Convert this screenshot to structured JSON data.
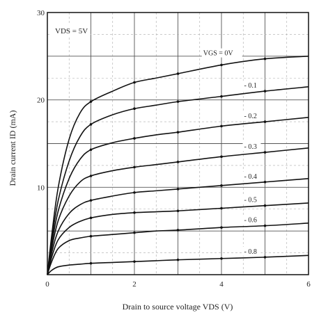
{
  "chart_data": {
    "type": "line",
    "title": "",
    "xlabel": "Drain to source voltage  VDS (V)",
    "ylabel": "Drain current  ID (mA)",
    "xlim": [
      0,
      6
    ],
    "ylim": [
      0,
      30
    ],
    "x_ticks": [
      "0",
      "2",
      "4",
      "6"
    ],
    "y_ticks": [
      "10",
      "20",
      "30"
    ],
    "grid": true,
    "annotation": "VDS = 5V",
    "series_label_prefix": "VGS = ",
    "x": [
      0,
      0.1,
      0.25,
      0.5,
      0.75,
      1,
      1.5,
      2,
      2.5,
      3,
      4,
      5,
      6
    ],
    "series": [
      {
        "name": "0V",
        "label": "VGS = 0V",
        "values": [
          0,
          4.5,
          10,
          15.5,
          18.5,
          19.8,
          21,
          22,
          22.5,
          23,
          24,
          24.7,
          25
        ]
      },
      {
        "name": "-0.1",
        "label": "- 0.1",
        "values": [
          0,
          4,
          8.5,
          13,
          15.8,
          17.2,
          18.3,
          19,
          19.4,
          19.8,
          20.4,
          21,
          21.5
        ]
      },
      {
        "name": "-0.2",
        "label": "- 0.2",
        "values": [
          0,
          3.5,
          7.3,
          11,
          13.2,
          14.3,
          15.1,
          15.6,
          16,
          16.3,
          17,
          17.5,
          18
        ]
      },
      {
        "name": "-0.3",
        "label": "- 0.3",
        "values": [
          0,
          3,
          6.2,
          9,
          10.6,
          11.3,
          11.9,
          12.3,
          12.6,
          12.9,
          13.5,
          14,
          14.5
        ]
      },
      {
        "name": "-0.4",
        "label": "- 0.4",
        "values": [
          0,
          2.5,
          5,
          7,
          8,
          8.5,
          9,
          9.4,
          9.6,
          9.8,
          10.2,
          10.6,
          11
        ]
      },
      {
        "name": "-0.5",
        "label": "- 0.5",
        "values": [
          0,
          2,
          4,
          5.4,
          6.1,
          6.5,
          6.9,
          7.1,
          7.2,
          7.3,
          7.6,
          7.9,
          8.2
        ]
      },
      {
        "name": "-0.6",
        "label": "- 0.6",
        "values": [
          0,
          1.5,
          3,
          3.9,
          4.2,
          4.4,
          4.6,
          4.8,
          5,
          5.1,
          5.4,
          5.6,
          5.9
        ]
      },
      {
        "name": "-0.8",
        "label": "- 0.8",
        "values": [
          0,
          0.5,
          0.9,
          1.1,
          1.2,
          1.3,
          1.4,
          1.5,
          1.6,
          1.7,
          1.85,
          2,
          2.2
        ]
      }
    ]
  }
}
